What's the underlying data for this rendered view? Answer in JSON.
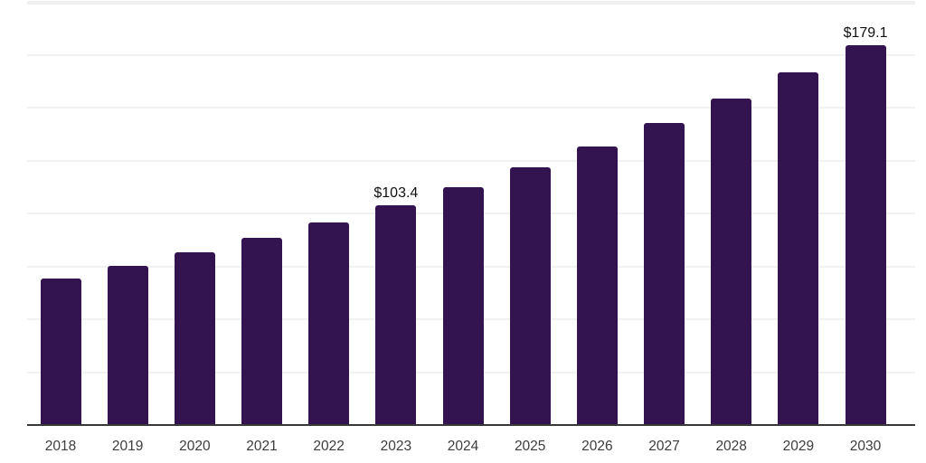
{
  "chart_data": {
    "type": "bar",
    "title": "",
    "xlabel": "",
    "ylabel": "",
    "categories": [
      "2018",
      "2019",
      "2020",
      "2021",
      "2022",
      "2023",
      "2024",
      "2025",
      "2026",
      "2027",
      "2028",
      "2029",
      "2030"
    ],
    "values": [
      68.7,
      74.7,
      81.1,
      88.2,
      95.2,
      103.4,
      111.9,
      121.3,
      131.1,
      142.2,
      153.7,
      166.1,
      179.1
    ],
    "value_prefix": "$",
    "data_labels": [
      {
        "category": "2023",
        "text": "$103.4"
      },
      {
        "category": "2030",
        "text": "$179.1"
      }
    ],
    "ylim": [
      0,
      200
    ],
    "gridline_interval": 25,
    "grid_visible": true,
    "legend": "none",
    "colors": {
      "bar": "#341450",
      "axis_line": "#383838",
      "gridline": "#f2f2f2",
      "gridline_top": "#efefef",
      "tick_label": "#3d3d3d",
      "data_label": "#111111",
      "background": "#ffffff"
    }
  }
}
